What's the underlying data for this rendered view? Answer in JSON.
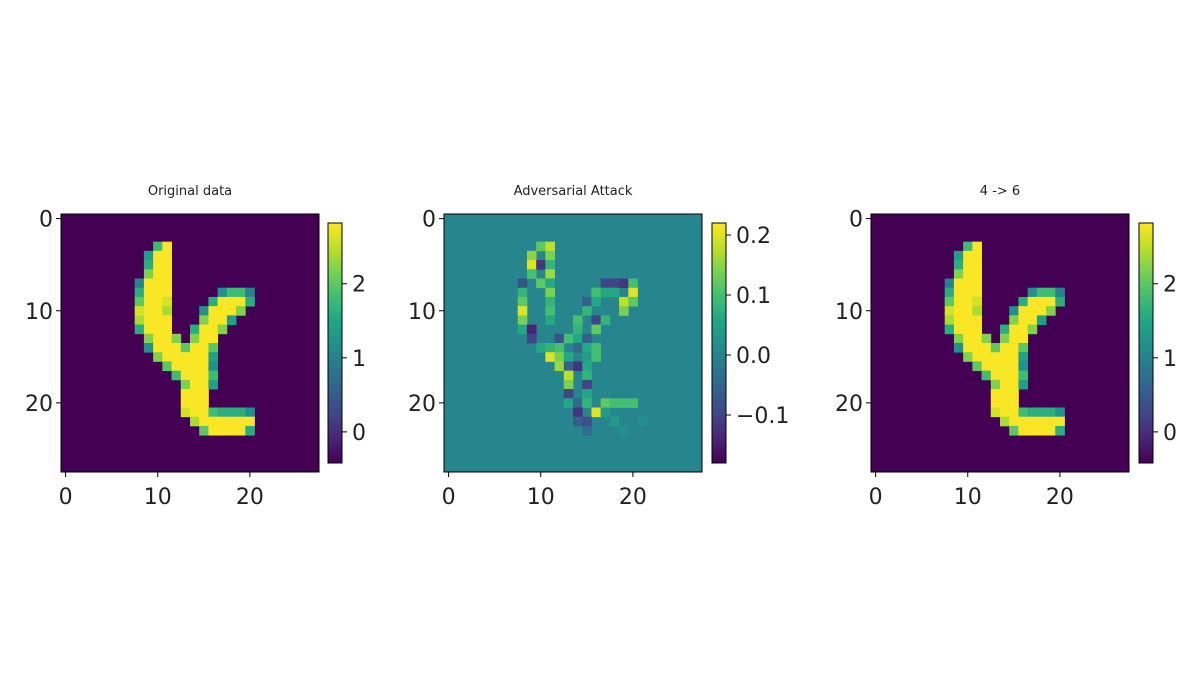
{
  "figure_title": "",
  "colormap": "viridis",
  "chart_data": [
    {
      "type": "heatmap",
      "title": "Original data",
      "grid_size": [
        28,
        28
      ],
      "x_ticks": [
        0,
        10,
        20
      ],
      "y_ticks": [
        0,
        10,
        20
      ],
      "colorbar": {
        "range": [
          -0.42,
          2.82
        ],
        "ticks": [
          0,
          1,
          2
        ],
        "tick_labels": [
          "0",
          "1",
          "2"
        ]
      },
      "background_value": -0.42,
      "cells": [
        [
          3,
          10,
          1.8
        ],
        [
          3,
          11,
          2.8
        ],
        [
          4,
          9,
          1.4
        ],
        [
          4,
          10,
          2.8
        ],
        [
          4,
          11,
          2.8
        ],
        [
          5,
          9,
          1.6
        ],
        [
          5,
          10,
          2.8
        ],
        [
          5,
          11,
          2.8
        ],
        [
          6,
          9,
          2.2
        ],
        [
          6,
          10,
          2.8
        ],
        [
          6,
          11,
          2.8
        ],
        [
          7,
          8,
          1.0
        ],
        [
          7,
          9,
          2.8
        ],
        [
          7,
          10,
          2.8
        ],
        [
          7,
          11,
          2.8
        ],
        [
          8,
          8,
          1.6
        ],
        [
          8,
          9,
          2.8
        ],
        [
          8,
          10,
          2.8
        ],
        [
          8,
          11,
          2.8
        ],
        [
          8,
          17,
          1.2
        ],
        [
          8,
          18,
          1.8
        ],
        [
          8,
          19,
          1.8
        ],
        [
          8,
          20,
          1.0
        ],
        [
          9,
          8,
          2.0
        ],
        [
          9,
          9,
          2.8
        ],
        [
          9,
          10,
          2.8
        ],
        [
          9,
          11,
          2.6
        ],
        [
          9,
          16,
          1.6
        ],
        [
          9,
          17,
          2.8
        ],
        [
          9,
          18,
          2.8
        ],
        [
          9,
          19,
          2.8
        ],
        [
          9,
          20,
          1.6
        ],
        [
          10,
          8,
          2.6
        ],
        [
          10,
          9,
          2.8
        ],
        [
          10,
          10,
          2.8
        ],
        [
          10,
          11,
          2.4
        ],
        [
          10,
          15,
          1.2
        ],
        [
          10,
          16,
          2.8
        ],
        [
          10,
          17,
          2.8
        ],
        [
          10,
          18,
          2.8
        ],
        [
          10,
          19,
          2.2
        ],
        [
          11,
          8,
          2.4
        ],
        [
          11,
          9,
          2.8
        ],
        [
          11,
          10,
          2.8
        ],
        [
          11,
          11,
          2.8
        ],
        [
          11,
          15,
          2.2
        ],
        [
          11,
          16,
          2.8
        ],
        [
          11,
          17,
          2.8
        ],
        [
          11,
          18,
          1.4
        ],
        [
          12,
          8,
          1.6
        ],
        [
          12,
          9,
          2.8
        ],
        [
          12,
          10,
          2.8
        ],
        [
          12,
          11,
          2.8
        ],
        [
          12,
          14,
          1.6
        ],
        [
          12,
          15,
          2.8
        ],
        [
          12,
          16,
          2.8
        ],
        [
          12,
          17,
          2.2
        ],
        [
          13,
          9,
          2.2
        ],
        [
          13,
          10,
          2.8
        ],
        [
          13,
          11,
          2.8
        ],
        [
          13,
          12,
          2.2
        ],
        [
          13,
          14,
          2.2
        ],
        [
          13,
          15,
          2.8
        ],
        [
          13,
          16,
          2.8
        ],
        [
          14,
          9,
          1.2
        ],
        [
          14,
          10,
          2.8
        ],
        [
          14,
          11,
          2.8
        ],
        [
          14,
          12,
          2.8
        ],
        [
          14,
          13,
          2.0
        ],
        [
          14,
          14,
          2.8
        ],
        [
          14,
          15,
          2.8
        ],
        [
          14,
          16,
          2.0
        ],
        [
          15,
          10,
          2.2
        ],
        [
          15,
          11,
          2.8
        ],
        [
          15,
          12,
          2.8
        ],
        [
          15,
          13,
          2.8
        ],
        [
          15,
          14,
          2.8
        ],
        [
          15,
          15,
          2.8
        ],
        [
          15,
          16,
          1.4
        ],
        [
          16,
          11,
          2.0
        ],
        [
          16,
          12,
          2.8
        ],
        [
          16,
          13,
          2.8
        ],
        [
          16,
          14,
          2.8
        ],
        [
          16,
          15,
          2.8
        ],
        [
          16,
          16,
          1.2
        ],
        [
          17,
          12,
          1.8
        ],
        [
          17,
          13,
          2.8
        ],
        [
          17,
          14,
          2.8
        ],
        [
          17,
          15,
          2.8
        ],
        [
          17,
          16,
          1.8
        ],
        [
          18,
          13,
          2.2
        ],
        [
          18,
          14,
          2.8
        ],
        [
          18,
          15,
          2.8
        ],
        [
          18,
          16,
          1.4
        ],
        [
          19,
          13,
          2.8
        ],
        [
          19,
          14,
          2.8
        ],
        [
          19,
          15,
          2.8
        ],
        [
          20,
          13,
          2.8
        ],
        [
          20,
          14,
          2.8
        ],
        [
          20,
          15,
          2.8
        ],
        [
          21,
          13,
          2.6
        ],
        [
          21,
          14,
          2.8
        ],
        [
          21,
          15,
          2.8
        ],
        [
          21,
          16,
          1.8
        ],
        [
          21,
          17,
          1.6
        ],
        [
          21,
          18,
          1.6
        ],
        [
          21,
          19,
          1.6
        ],
        [
          21,
          20,
          1.2
        ],
        [
          22,
          14,
          2.4
        ],
        [
          22,
          15,
          2.8
        ],
        [
          22,
          16,
          2.8
        ],
        [
          22,
          17,
          2.8
        ],
        [
          22,
          18,
          2.8
        ],
        [
          22,
          19,
          2.8
        ],
        [
          22,
          20,
          2.8
        ],
        [
          23,
          15,
          2.0
        ],
        [
          23,
          16,
          2.8
        ],
        [
          23,
          17,
          2.8
        ],
        [
          23,
          18,
          2.8
        ],
        [
          23,
          19,
          2.8
        ],
        [
          23,
          20,
          1.6
        ]
      ]
    },
    {
      "type": "heatmap",
      "title": "Adversarial Attack",
      "grid_size": [
        28,
        28
      ],
      "x_ticks": [
        0,
        10,
        20
      ],
      "y_ticks": [
        0,
        10,
        20
      ],
      "colorbar": {
        "range": [
          -0.18,
          0.22
        ],
        "ticks": [
          -0.1,
          0.0,
          0.1,
          0.2
        ],
        "tick_labels": [
          "−0.1",
          "0.0",
          "0.1",
          "0.2"
        ]
      },
      "background_value": 0.0,
      "cells": [
        [
          3,
          10,
          0.12
        ],
        [
          3,
          11,
          0.18
        ],
        [
          4,
          9,
          0.15
        ],
        [
          4,
          11,
          0.14
        ],
        [
          5,
          9,
          0.2
        ],
        [
          5,
          10,
          -0.12
        ],
        [
          5,
          11,
          0.08
        ],
        [
          6,
          9,
          0.1
        ],
        [
          6,
          11,
          0.16
        ],
        [
          7,
          8,
          -0.08
        ],
        [
          7,
          10,
          0.12
        ],
        [
          7,
          11,
          0.06
        ],
        [
          7,
          17,
          -0.1
        ],
        [
          7,
          18,
          -0.1
        ],
        [
          7,
          19,
          -0.12
        ],
        [
          7,
          20,
          0.1
        ],
        [
          8,
          8,
          0.08
        ],
        [
          8,
          11,
          0.14
        ],
        [
          8,
          16,
          0.1
        ],
        [
          8,
          17,
          0.06
        ],
        [
          8,
          18,
          0.06
        ],
        [
          8,
          20,
          0.2
        ],
        [
          9,
          8,
          0.12
        ],
        [
          9,
          11,
          0.08
        ],
        [
          9,
          15,
          -0.06
        ],
        [
          9,
          16,
          0.06
        ],
        [
          9,
          19,
          0.18
        ],
        [
          9,
          20,
          0.12
        ],
        [
          10,
          8,
          0.2
        ],
        [
          10,
          11,
          0.1
        ],
        [
          10,
          15,
          0.08
        ],
        [
          10,
          19,
          0.14
        ],
        [
          11,
          8,
          0.14
        ],
        [
          11,
          11,
          0.06
        ],
        [
          11,
          14,
          0.1
        ],
        [
          11,
          16,
          -0.1
        ],
        [
          11,
          17,
          0.08
        ],
        [
          12,
          8,
          0.06
        ],
        [
          12,
          9,
          -0.14
        ],
        [
          12,
          14,
          0.08
        ],
        [
          12,
          16,
          0.12
        ],
        [
          13,
          9,
          -0.1
        ],
        [
          13,
          12,
          -0.08
        ],
        [
          13,
          13,
          0.1
        ],
        [
          13,
          14,
          0.06
        ],
        [
          13,
          15,
          -0.06
        ],
        [
          14,
          10,
          0.06
        ],
        [
          14,
          11,
          0.08
        ],
        [
          14,
          12,
          0.1
        ],
        [
          14,
          14,
          -0.04
        ],
        [
          14,
          15,
          0.06
        ],
        [
          14,
          16,
          0.1
        ],
        [
          15,
          11,
          0.2
        ],
        [
          15,
          12,
          0.14
        ],
        [
          15,
          13,
          0.06
        ],
        [
          15,
          15,
          0.04
        ],
        [
          15,
          16,
          0.1
        ],
        [
          16,
          12,
          0.16
        ],
        [
          16,
          13,
          -0.06
        ],
        [
          16,
          14,
          -0.12
        ],
        [
          16,
          15,
          0.06
        ],
        [
          17,
          13,
          0.18
        ],
        [
          17,
          15,
          0.08
        ],
        [
          18,
          13,
          0.14
        ],
        [
          18,
          15,
          -0.1
        ],
        [
          19,
          13,
          -0.1
        ],
        [
          19,
          15,
          0.06
        ],
        [
          20,
          13,
          0.06
        ],
        [
          20,
          14,
          -0.04
        ],
        [
          20,
          15,
          0.08
        ],
        [
          20,
          17,
          0.12
        ],
        [
          20,
          18,
          0.1
        ],
        [
          20,
          19,
          0.1
        ],
        [
          20,
          20,
          0.1
        ],
        [
          21,
          14,
          -0.12
        ],
        [
          21,
          16,
          0.2
        ],
        [
          21,
          17,
          0.04
        ],
        [
          22,
          14,
          -0.06
        ],
        [
          22,
          15,
          -0.08
        ],
        [
          22,
          18,
          0.04
        ],
        [
          22,
          21,
          0.02
        ],
        [
          23,
          15,
          -0.04
        ],
        [
          23,
          19,
          0.02
        ]
      ]
    },
    {
      "type": "heatmap",
      "title": "4 -> 6",
      "grid_size": [
        28,
        28
      ],
      "x_ticks": [
        0,
        10,
        20
      ],
      "y_ticks": [
        0,
        10,
        20
      ],
      "colorbar": {
        "range": [
          -0.42,
          2.82
        ],
        "ticks": [
          0,
          1,
          2
        ],
        "tick_labels": [
          "0",
          "1",
          "2"
        ]
      },
      "background_value": -0.42,
      "same_cells_as": 0
    }
  ]
}
